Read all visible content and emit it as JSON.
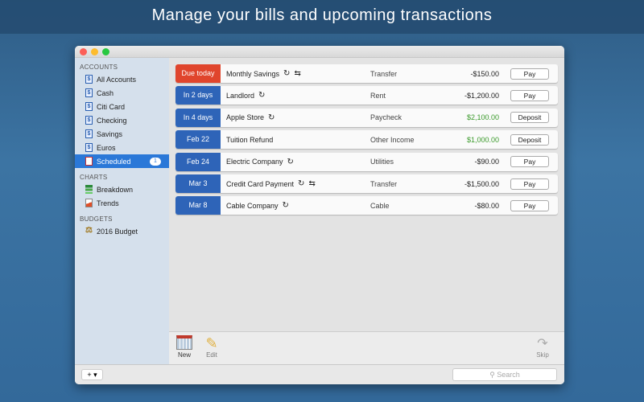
{
  "headline": "Manage your bills and upcoming transactions",
  "sidebar": {
    "accounts_label": "ACCOUNTS",
    "accounts": [
      {
        "label": "All Accounts"
      },
      {
        "label": "Cash"
      },
      {
        "label": "Citi Card"
      },
      {
        "label": "Checking"
      },
      {
        "label": "Savings"
      },
      {
        "label": "Euros"
      }
    ],
    "scheduled": {
      "label": "Scheduled",
      "badge": "1"
    },
    "charts_label": "CHARTS",
    "charts": [
      {
        "label": "Breakdown"
      },
      {
        "label": "Trends"
      }
    ],
    "budgets_label": "BUDGETS",
    "budgets": [
      {
        "label": "2016 Budget"
      }
    ]
  },
  "colors": {
    "due": "#e0452c",
    "upcoming": "#2e64b8",
    "income": "#3a9a2a",
    "selected": "#2a78d8"
  },
  "transactions": [
    {
      "date": "Due today",
      "name": "Monthly Savings",
      "recurring": true,
      "transfer": true,
      "category": "Transfer",
      "amount": "-$150.00",
      "action": "Pay",
      "status": "due"
    },
    {
      "date": "In 2 days",
      "name": "Landlord",
      "recurring": true,
      "transfer": false,
      "category": "Rent",
      "amount": "-$1,200.00",
      "action": "Pay",
      "status": "upcoming"
    },
    {
      "date": "In 4 days",
      "name": "Apple Store",
      "recurring": true,
      "transfer": false,
      "category": "Paycheck",
      "amount": "$2,100.00",
      "action": "Deposit",
      "status": "upcoming"
    },
    {
      "date": "Feb 22",
      "name": "Tuition Refund",
      "recurring": false,
      "transfer": false,
      "category": "Other Income",
      "amount": "$1,000.00",
      "action": "Deposit",
      "status": "upcoming"
    },
    {
      "date": "Feb 24",
      "name": "Electric Company",
      "recurring": true,
      "transfer": false,
      "category": "Utilities",
      "amount": "-$90.00",
      "action": "Pay",
      "status": "upcoming"
    },
    {
      "date": "Mar 3",
      "name": "Credit Card Payment",
      "recurring": true,
      "transfer": true,
      "category": "Transfer",
      "amount": "-$1,500.00",
      "action": "Pay",
      "status": "upcoming"
    },
    {
      "date": "Mar 8",
      "name": "Cable Company",
      "recurring": true,
      "transfer": false,
      "category": "Cable",
      "amount": "-$80.00",
      "action": "Pay",
      "status": "upcoming"
    }
  ],
  "toolbar": {
    "new_label": "New",
    "edit_label": "Edit",
    "skip_label": "Skip"
  },
  "bottom": {
    "add_label": "+ ▾",
    "search_placeholder": "Search"
  }
}
